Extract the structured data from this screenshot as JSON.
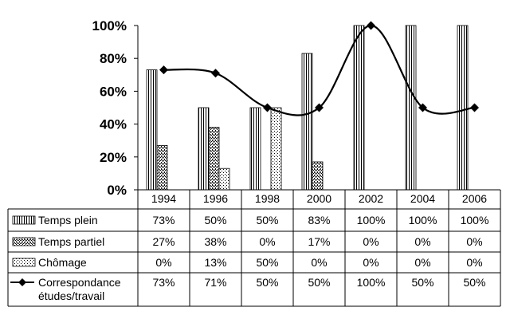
{
  "chart_data": {
    "type": "bar",
    "categories": [
      "1994",
      "1996",
      "1998",
      "2000",
      "2002",
      "2004",
      "2006"
    ],
    "ylim": [
      0,
      100
    ],
    "yticks": [
      "0%",
      "20%",
      "40%",
      "60%",
      "80%",
      "100%"
    ],
    "grid": false,
    "legend": "data-table-left",
    "series": [
      {
        "name": "Temps plein",
        "kind": "bar",
        "pattern": "vertical-lines",
        "values": [
          73,
          50,
          50,
          83,
          100,
          100,
          100
        ],
        "labels": [
          "73%",
          "50%",
          "50%",
          "83%",
          "100%",
          "100%",
          "100%"
        ]
      },
      {
        "name": "Temps partiel",
        "kind": "bar",
        "pattern": "crosshatch-dots",
        "values": [
          27,
          38,
          0,
          17,
          0,
          0,
          0
        ],
        "labels": [
          "27%",
          "38%",
          "0%",
          "17%",
          "0%",
          "0%",
          "0%"
        ]
      },
      {
        "name": "Chômage",
        "kind": "bar",
        "pattern": "fine-dots",
        "values": [
          0,
          13,
          50,
          0,
          0,
          0,
          0
        ],
        "labels": [
          "0%",
          "13%",
          "50%",
          "0%",
          "0%",
          "0%",
          "0%"
        ]
      },
      {
        "name": "Correspondance études/travail",
        "name_lines": [
          "Correspondance",
          "études/travail"
        ],
        "kind": "line",
        "marker": "diamond",
        "color": "#000000",
        "values": [
          73,
          71,
          50,
          50,
          100,
          50,
          50
        ],
        "labels": [
          "73%",
          "71%",
          "50%",
          "50%",
          "100%",
          "50%",
          "50%"
        ]
      }
    ]
  }
}
